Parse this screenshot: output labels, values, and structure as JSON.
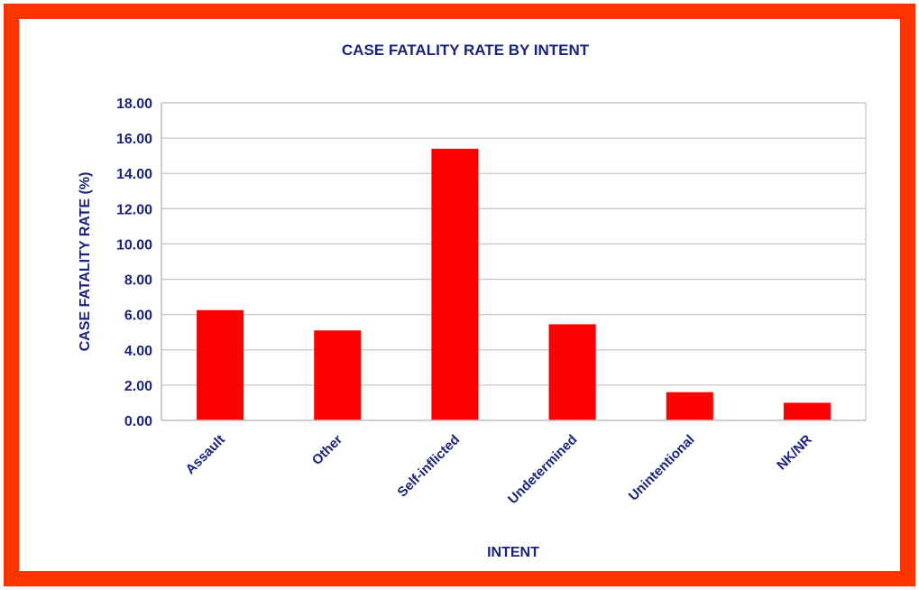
{
  "colors": {
    "frame": "#ff3300",
    "bar": "#ff0000",
    "text": "#1a237e",
    "grid": "#c8c8c8",
    "axis": "#bdbdbd"
  },
  "chart_data": {
    "type": "bar",
    "title": "CASE FATALITY RATE BY INTENT",
    "xlabel": "INTENT",
    "ylabel": "CASE FATALITY RATE (%)",
    "categories": [
      "Assault",
      "Other",
      "Self-inflicted",
      "Undetermined",
      "Unintentional",
      "NK/NR"
    ],
    "values": [
      6.25,
      5.1,
      15.4,
      5.45,
      1.6,
      1.0
    ],
    "ylim": [
      0,
      18
    ],
    "ytick_step": 2,
    "ytick_labels": [
      "0.00",
      "2.00",
      "4.00",
      "6.00",
      "8.00",
      "10.00",
      "12.00",
      "14.00",
      "16.00",
      "18.00"
    ],
    "grid": true,
    "legend": "none"
  }
}
